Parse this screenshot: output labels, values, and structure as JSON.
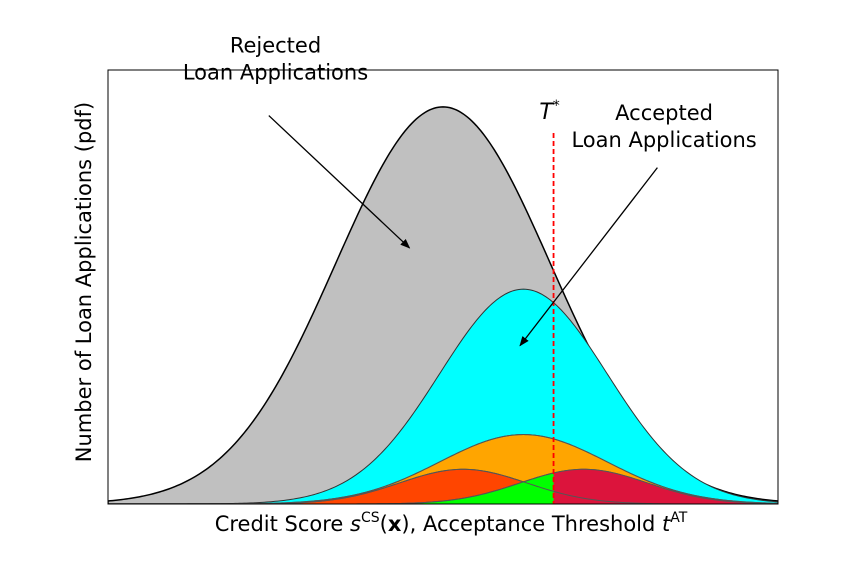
{
  "chart_data": {
    "type": "area",
    "title": "",
    "xlabel_parts": [
      "Credit Score ",
      "s",
      "CS",
      "(",
      "x",
      "), Acceptance Threshold ",
      "t",
      "AT"
    ],
    "ylabel": "Number of Loan Applications (pdf)",
    "xlim": [
      0,
      1
    ],
    "ylim": [
      0,
      1
    ],
    "show_ticks": false,
    "grid": false,
    "threshold": {
      "x": 0.665,
      "label_main": "T",
      "label_sup": "*",
      "color": "#ff0000"
    },
    "series": [
      {
        "mean": 0.5,
        "std": 0.16,
        "amp": 0.915,
        "color": "#c0c0c0",
        "stroke": "#000000"
      },
      {
        "mean": 0.62,
        "std": 0.125,
        "amp": 0.495,
        "color": "#00ffff",
        "stroke": "#333333"
      },
      {
        "mean": 0.62,
        "std": 0.125,
        "amp": 0.16,
        "color": "#ffa500",
        "stroke": "#555555"
      },
      {
        "mean": 0.53,
        "std": 0.095,
        "amp": 0.08,
        "color": "#ff4500",
        "stroke": "#555555"
      },
      {
        "mean": 0.71,
        "std": 0.095,
        "amp": 0.08,
        "color": "#00ff00",
        "stroke": "#555555"
      }
    ],
    "overlap_color": "#dc143c",
    "annotations": [
      {
        "name": "rejected",
        "lines": [
          "Rejected",
          "Loan Applications"
        ],
        "text_x": 0.25,
        "text_y": 1.04,
        "arrow_from": [
          0.24,
          0.895
        ],
        "arrow_to": [
          0.45,
          0.59
        ]
      },
      {
        "name": "accepted",
        "lines": [
          "Accepted",
          "Loan Applications"
        ],
        "text_x": 0.83,
        "text_y": 0.885,
        "arrow_from": [
          0.82,
          0.775
        ],
        "arrow_to": [
          0.615,
          0.365
        ]
      }
    ]
  }
}
